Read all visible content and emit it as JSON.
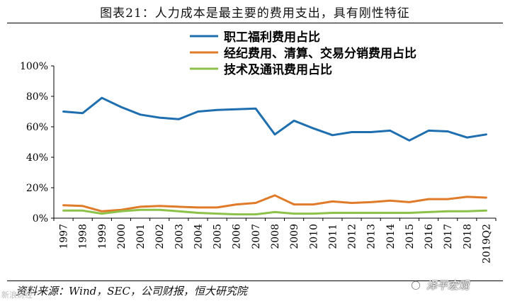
{
  "figure_title": "图表21：人力成本是最主要的费用支出，具有刚性特征",
  "source_note": "资料来源：Wind，SEC，公司财报，恒大研究院",
  "watermark": "泽平宏观",
  "watermark_left": "新浪财经",
  "chart_data": {
    "type": "line",
    "title": "图表21：人力成本是最主要的费用支出，具有刚性特征",
    "xlabel": "",
    "ylabel": "",
    "ylim": [
      0,
      100
    ],
    "yticks": [
      "0%",
      "20%",
      "40%",
      "60%",
      "80%",
      "100%"
    ],
    "categories": [
      "1997",
      "1998",
      "1999",
      "2000",
      "2001",
      "2002",
      "2003",
      "2004",
      "2005",
      "2006",
      "2007",
      "2008",
      "2009",
      "2010",
      "2011",
      "2012",
      "2013",
      "2014",
      "2015",
      "2016",
      "2017",
      "2018",
      "2019Q2"
    ],
    "series": [
      {
        "name": "职工福利费用占比",
        "color": "#1f6fb0",
        "values": [
          70,
          69,
          79,
          73,
          68,
          66,
          65,
          70,
          71,
          71.5,
          72,
          55,
          64,
          59,
          54.5,
          56.5,
          56.5,
          57.5,
          51,
          57.5,
          57,
          53,
          55
        ]
      },
      {
        "name": "经纪费用、清算、交易分销费用占比",
        "color": "#e07b2a",
        "values": [
          8.5,
          8,
          4.5,
          5.5,
          7.5,
          8,
          7.5,
          7,
          7,
          9,
          10,
          15,
          9,
          9,
          11,
          10,
          10.5,
          11.5,
          10.5,
          12.5,
          12.5,
          14,
          13.5
        ]
      },
      {
        "name": "技术及通讯费用占比",
        "color": "#8cc24a",
        "values": [
          5,
          5,
          3,
          4.5,
          5.5,
          5.5,
          4.5,
          3.5,
          3,
          2.5,
          2.5,
          4,
          3,
          3,
          3.5,
          3.5,
          3.5,
          3.5,
          3.5,
          4,
          4.5,
          4.5,
          5
        ]
      }
    ],
    "legend_position": "top-right"
  }
}
